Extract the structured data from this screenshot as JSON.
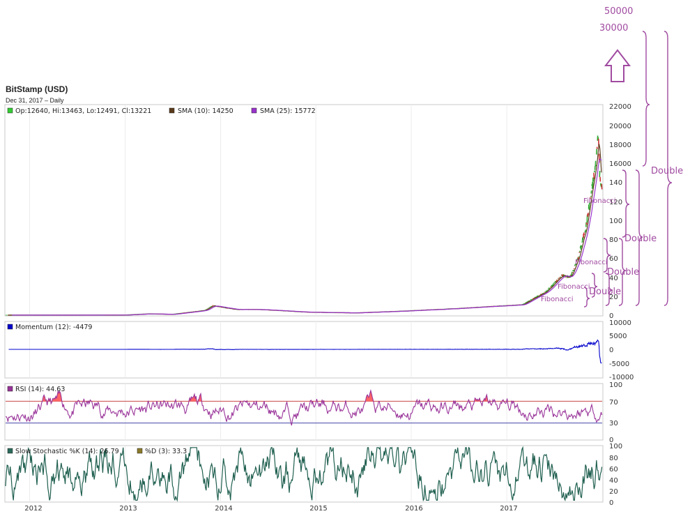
{
  "header": {
    "title": "BitStamp (USD)",
    "subtitle": "Dec 31, 2017 – Daily"
  },
  "price_panel": {
    "legend": [
      {
        "text": "Op:12640, Hi:13463, Lo:12491, Cl:13221",
        "color": "#33cc33"
      },
      {
        "text": "SMA (10): 14250",
        "color": "#5a3a1a"
      },
      {
        "text": "SMA (25): 15772",
        "color": "#9933cc"
      }
    ],
    "y_ticks": [
      "22000",
      "20000",
      "18000",
      "16000",
      "140",
      "120",
      "100",
      "80",
      "60",
      "40",
      "20",
      "0"
    ]
  },
  "momentum_panel": {
    "legend": {
      "text": "Momentum (12): -4479",
      "color": "#0000cc"
    },
    "y_ticks": [
      "10000",
      "5000",
      "0",
      "-5000",
      "-10000"
    ]
  },
  "rsi_panel": {
    "legend": {
      "text": "RSI (14): 44.63",
      "color": "#993399"
    },
    "y_ticks": [
      "100",
      "70",
      "30",
      "0"
    ]
  },
  "stoch_panel": {
    "legend": [
      {
        "text": "Slow Stochastic %K (14): 26.79",
        "color": "#2a6a5a"
      },
      {
        "text": "%D (3): 33.3",
        "color": "#8b7a2a"
      }
    ],
    "y_ticks": [
      "100",
      "80",
      "60",
      "40",
      "20",
      "0"
    ]
  },
  "x_axis_labels": [
    "2012",
    "2013",
    "2014",
    "2015",
    "2016",
    "2017"
  ],
  "annotations": {
    "top_targets": [
      "50000",
      "30000"
    ],
    "double_labels": [
      "Double",
      "Double",
      "Double",
      "Double"
    ],
    "fibonacci_labels": [
      "Fibonacci",
      "Fibonacci",
      "Fibonacci",
      "Fibonacci"
    ],
    "color": "#a04aa0"
  },
  "colors": {
    "price_up": "#33aa33",
    "price_down": "#cc3333",
    "sma10": "#5a3a1a",
    "sma25": "#9933cc",
    "momentum": "#0000cc",
    "rsi": "#993399",
    "rsi_fill": "#ff6666",
    "stoch_k": "#1f5f4f"
  },
  "chart_data": {
    "type": "line",
    "title": "BitStamp (USD)",
    "x_range": [
      "2011-10",
      "2018-01"
    ],
    "price_close": {
      "x": [
        "2011-10",
        "2012-01",
        "2012-06",
        "2013-01",
        "2013-04",
        "2013-07",
        "2013-11",
        "2013-12",
        "2014-03",
        "2014-06",
        "2014-12",
        "2015-06",
        "2015-12",
        "2016-06",
        "2016-12",
        "2017-03",
        "2017-06",
        "2017-08",
        "2017-09",
        "2017-10",
        "2017-11",
        "2017-12-08",
        "2017-12-17",
        "2017-12-22",
        "2017-12-31"
      ],
      "values": [
        5,
        6,
        6,
        15,
        140,
        90,
        500,
        1000,
        600,
        600,
        320,
        240,
        430,
        670,
        960,
        1100,
        2500,
        4200,
        4000,
        6000,
        9500,
        16000,
        19500,
        15000,
        13221
      ]
    },
    "sma10_last": 14250,
    "sma25_last": 15772,
    "momentum_last": -4479,
    "rsi_last": 44.63,
    "rsi_levels": [
      70,
      30
    ],
    "stoch_k_last": 26.79,
    "stoch_d_last": 33.3
  }
}
